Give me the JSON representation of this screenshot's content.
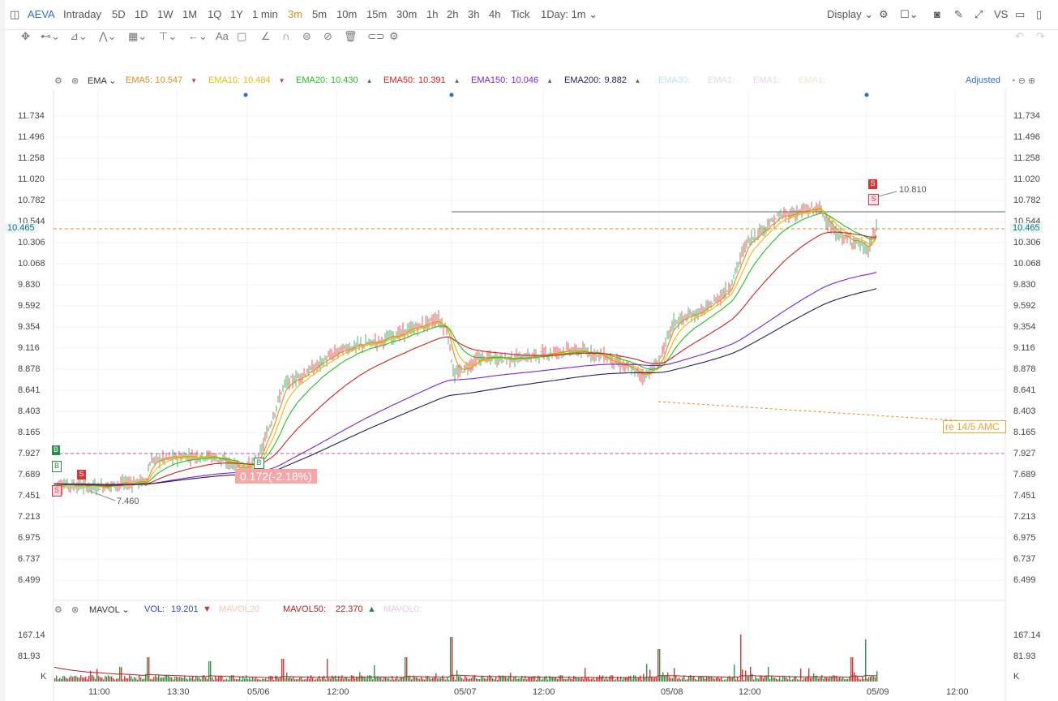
{
  "topbar": {
    "symbol": "AEVA",
    "periods": [
      "Intraday",
      "5D",
      "1D",
      "1W",
      "1M",
      "1Q",
      "1Y",
      "1 min",
      "3m",
      "5m",
      "10m",
      "15m",
      "30m",
      "1h",
      "2h",
      "3h",
      "4h",
      "Tick"
    ],
    "active_period": "3m",
    "range": "1Day: 1m",
    "display": "Display",
    "vs": "VS"
  },
  "main_legend": {
    "indicator": "EMA",
    "adjusted": "Adjusted",
    "items": [
      {
        "name": "EMA5:",
        "value": "10.547",
        "dir": "down",
        "color": "#e58a1c"
      },
      {
        "name": "EMA10:",
        "value": "10.484",
        "dir": "down",
        "color": "#e8b90c"
      },
      {
        "name": "EMA20:",
        "value": "10.430",
        "dir": "up",
        "color": "#22c022"
      },
      {
        "name": "EMA50:",
        "value": "10.391",
        "dir": "up",
        "color": "#cc2222"
      },
      {
        "name": "EMA150:",
        "value": "10.046",
        "dir": "up",
        "color": "#7a22cc"
      },
      {
        "name": "EMA200:",
        "value": "9.882",
        "dir": "up",
        "color": "#2a1a55"
      },
      {
        "name": "EMA30:",
        "value": "",
        "dir": "",
        "color": "#bfe3ef"
      },
      {
        "name": "EMA1:",
        "value": "",
        "dir": "",
        "color": "#dddddd"
      },
      {
        "name": "EMA1:",
        "value": "",
        "dir": "",
        "color": "#e5d6ea"
      },
      {
        "name": "EMA1:",
        "value": "",
        "dir": "",
        "color": "#f1e6c7"
      }
    ]
  },
  "price_axis": [
    "11.734",
    "11.496",
    "11.258",
    "11.020",
    "10.782",
    "10.544",
    "10.306",
    "10.068",
    "9.830",
    "9.592",
    "9.354",
    "9.116",
    "8.878",
    "8.641",
    "8.403",
    "8.165",
    "7.927",
    "7.689",
    "7.451",
    "7.213",
    "6.975",
    "6.737",
    "6.499"
  ],
  "current_price": "10.465",
  "annotations": {
    "high_label": "10.810",
    "low_label": "7.460",
    "pnl": "0.172(-2.18%)",
    "note": "re 14/5 AMC",
    "b_marker": "B",
    "s_marker": "S"
  },
  "vol_legend": {
    "indicator": "MAVOL",
    "vol_name": "VOL:",
    "vol_value": "19.201",
    "mavol20": "MAVOL20:",
    "mavol50": "MAVOL50:",
    "mavol50_value": "22.370",
    "mavol0": "MAVOL0:"
  },
  "vol_axis": [
    "167.14",
    "81.93",
    "K"
  ],
  "time_axis": [
    "11:00",
    "13:30",
    "05/06",
    "12:00",
    "05/07",
    "12:00",
    "05/08",
    "12:00",
    "05/09",
    "12:00"
  ],
  "chart_data": {
    "type": "line",
    "x": [
      "05/05 11:00",
      "05/05 13:30",
      "05/06",
      "05/06 12:00",
      "05/07",
      "05/07 12:00",
      "05/08",
      "05/08 12:00",
      "05/09"
    ],
    "series": [
      {
        "name": "EMA5",
        "values": [
          7.6,
          7.8,
          7.8,
          9.1,
          9.4,
          9.0,
          8.8,
          10.1,
          10.5
        ]
      },
      {
        "name": "EMA50",
        "values": [
          7.55,
          7.7,
          7.7,
          8.7,
          9.1,
          8.95,
          8.9,
          9.8,
          10.39
        ]
      },
      {
        "name": "EMA150",
        "values": [
          7.5,
          7.6,
          7.65,
          8.2,
          8.8,
          8.85,
          8.9,
          9.4,
          10.05
        ]
      },
      {
        "name": "EMA200",
        "values": [
          7.48,
          7.55,
          7.62,
          8.1,
          8.7,
          8.82,
          8.88,
          9.3,
          9.88
        ]
      }
    ],
    "ylim": [
      6.499,
      11.734
    ]
  }
}
